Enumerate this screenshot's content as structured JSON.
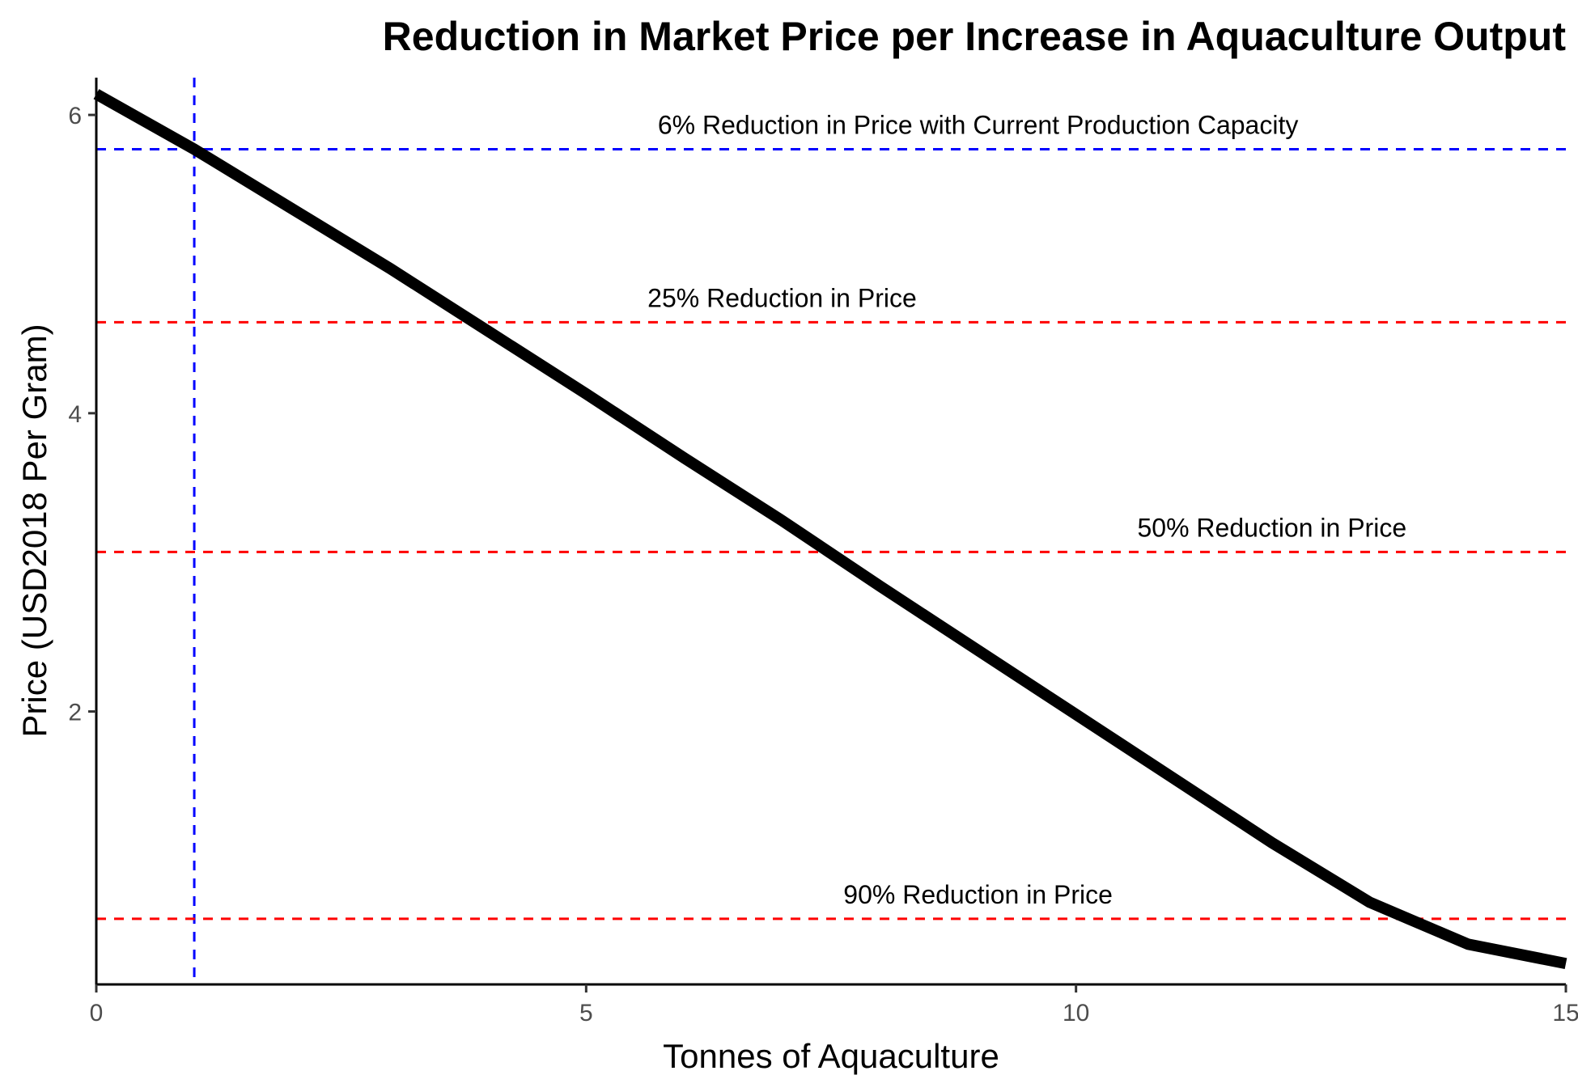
{
  "chart_data": {
    "type": "line",
    "title": "Reduction in Market Price per Increase in Aquaculture Output",
    "xlabel": "Tonnes of Aquaculture",
    "ylabel": "Price (USD2018 Per Gram)",
    "xlim": [
      0,
      15
    ],
    "ylim": [
      0.17,
      6.25
    ],
    "xticks": [
      0,
      5,
      10,
      15
    ],
    "yticks": [
      2,
      4,
      6
    ],
    "grid": false,
    "series": [
      {
        "color": "#000000",
        "x": [
          0,
          1,
          2,
          3,
          4,
          5,
          6,
          7,
          8,
          9,
          10,
          11,
          12,
          13,
          14,
          15
        ],
        "y": [
          6.14,
          5.77,
          5.37,
          4.97,
          4.55,
          4.13,
          3.7,
          3.28,
          2.84,
          2.41,
          1.98,
          1.55,
          1.12,
          0.72,
          0.44,
          0.31
        ]
      }
    ],
    "reference_lines": [
      {
        "orientation": "vertical",
        "x": 1.0,
        "color": "#0000ff",
        "style": "dashed"
      },
      {
        "orientation": "horizontal",
        "y": 5.77,
        "color": "#0000ff",
        "style": "dashed",
        "label": "6% Reduction in Price with Current Production Capacity",
        "label_x": 9.0
      },
      {
        "orientation": "horizontal",
        "y": 4.61,
        "color": "#ff0000",
        "style": "dashed",
        "label": "25% Reduction in Price",
        "label_x": 7.0
      },
      {
        "orientation": "horizontal",
        "y": 3.07,
        "color": "#ff0000",
        "style": "dashed",
        "label": "50% Reduction in Price",
        "label_x": 12.0
      },
      {
        "orientation": "horizontal",
        "y": 0.61,
        "color": "#ff0000",
        "style": "dashed",
        "label": "90% Reduction in Price",
        "label_x": 9.0
      }
    ]
  }
}
